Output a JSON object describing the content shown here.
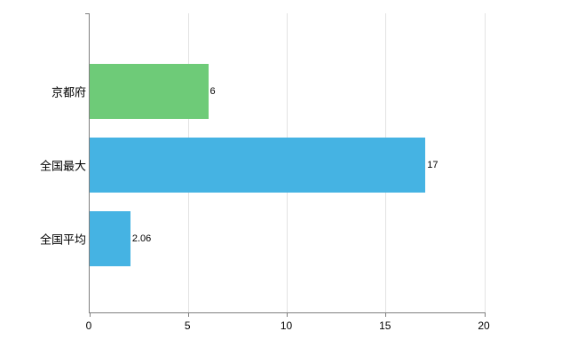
{
  "chart_data": {
    "type": "bar",
    "orientation": "horizontal",
    "categories": [
      "京都府",
      "全国最大",
      "全国平均"
    ],
    "values": [
      6,
      17,
      2.06
    ],
    "value_labels": [
      "6",
      "17",
      "2.06"
    ],
    "bar_colors": [
      "#6ecb78",
      "#45b3e3",
      "#45b3e3"
    ],
    "title": "",
    "xlabel": "",
    "ylabel": "",
    "xlim": [
      0,
      20
    ],
    "x_ticks": [
      0,
      5,
      10,
      15,
      20
    ],
    "grid": "vertical-only",
    "legend": "none",
    "colors": {
      "axis": "#7f7f7f",
      "gridline": "#e3e3e3",
      "background": "#ffffff",
      "text": "#000000"
    }
  }
}
